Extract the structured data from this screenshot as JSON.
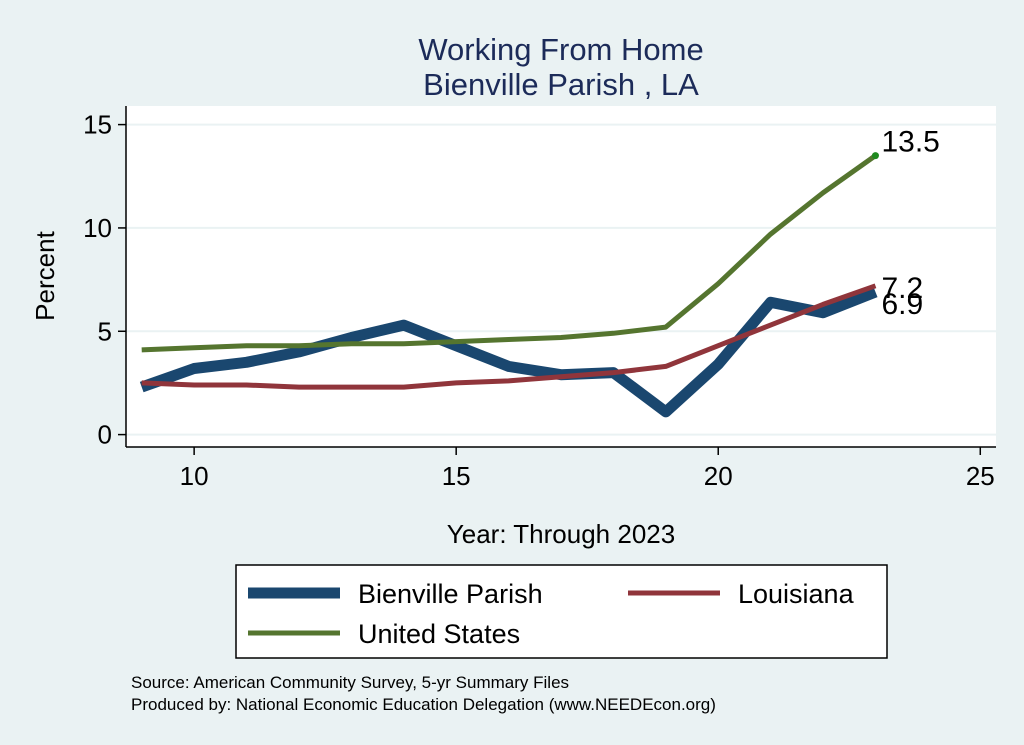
{
  "chart_data": {
    "type": "line",
    "title": [
      "Working From Home",
      "Bienville Parish , LA"
    ],
    "xlabel": "Year: Through 2023",
    "ylabel": "Percent",
    "xlim": [
      8.7,
      25.3
    ],
    "ylim": [
      -0.6,
      15.9
    ],
    "xticks": [
      10,
      15,
      20,
      25
    ],
    "yticks": [
      0,
      5,
      10,
      15
    ],
    "grid": true,
    "legend_position": "bottom",
    "series": [
      {
        "name": "Bienville Parish",
        "color": "#1a476f",
        "width": 11,
        "x": [
          9,
          10,
          11,
          12,
          13,
          14,
          15,
          16,
          17,
          18,
          19,
          20,
          21,
          22,
          23
        ],
        "values": [
          2.3,
          3.2,
          3.5,
          4.0,
          4.7,
          5.3,
          4.3,
          3.3,
          2.9,
          3.0,
          1.1,
          3.4,
          6.4,
          5.9,
          6.9
        ],
        "end_label": "6.9"
      },
      {
        "name": "Louisiana",
        "color": "#90353b",
        "width": 5,
        "x": [
          9,
          10,
          11,
          12,
          13,
          14,
          15,
          16,
          17,
          18,
          19,
          20,
          21,
          22,
          23
        ],
        "values": [
          2.5,
          2.4,
          2.4,
          2.3,
          2.3,
          2.3,
          2.5,
          2.6,
          2.8,
          3.0,
          3.3,
          4.3,
          5.3,
          6.3,
          7.2
        ],
        "end_label": "7.2"
      },
      {
        "name": "United States",
        "color": "#55752f",
        "width": 5,
        "x": [
          9,
          10,
          11,
          12,
          13,
          14,
          15,
          16,
          17,
          18,
          19,
          20,
          21,
          22,
          23
        ],
        "values": [
          4.1,
          4.2,
          4.3,
          4.3,
          4.4,
          4.4,
          4.5,
          4.6,
          4.7,
          4.9,
          5.2,
          7.3,
          9.7,
          11.7,
          13.5
        ],
        "end_label": "13.5",
        "end_dot_color": "#1f8a1f"
      }
    ],
    "source_notes": [
      "Source: American Community Survey, 5-yr Summary Files",
      "Produced by: National Economic Education Delegation (www.NEEDEcon.org)"
    ]
  }
}
